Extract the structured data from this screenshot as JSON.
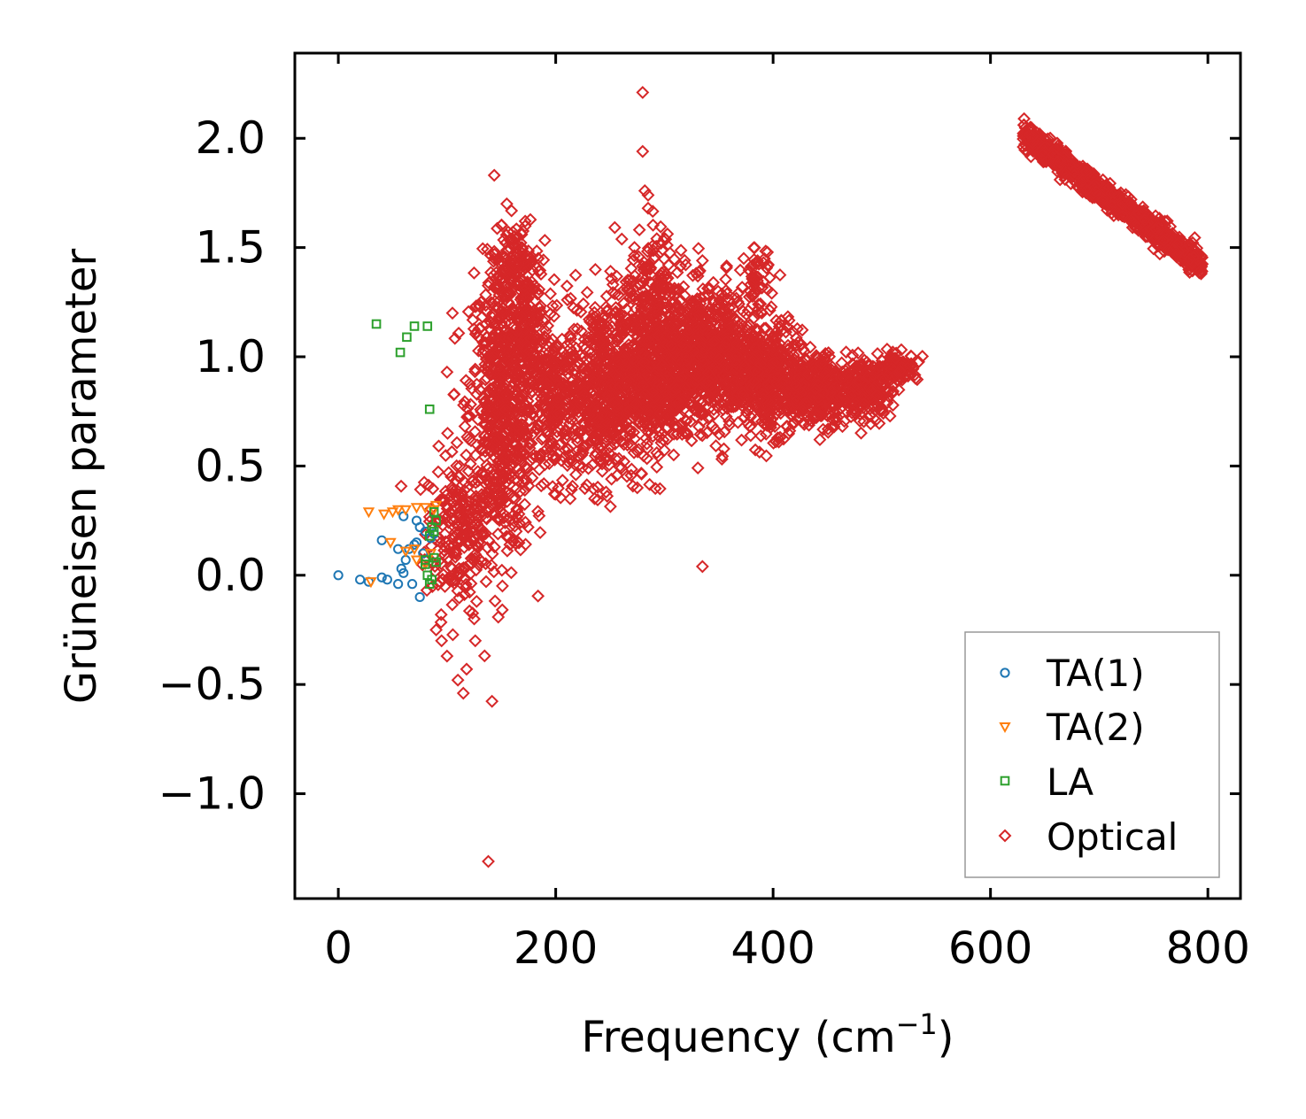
{
  "chart_data": {
    "type": "scatter",
    "xlabel": "Frequency (cm",
    "xlabel_sup": "−1",
    "xlabel_end": ")",
    "ylabel": "Grüneisen parameter",
    "xlim": [
      -40,
      830
    ],
    "ylim": [
      -1.48,
      2.39
    ],
    "xticks": [
      0,
      200,
      400,
      600,
      800
    ],
    "yticks": [
      2.0,
      1.5,
      1.0,
      0.5,
      0.0,
      -0.5,
      -1.0
    ],
    "xtick_labels": [
      "0",
      "200",
      "400",
      "600",
      "800"
    ],
    "ytick_labels": [
      "2.0",
      "1.5",
      "1.0",
      "0.5",
      "0.0",
      "−0.5",
      "−1.0"
    ],
    "legend_position": "bottom-right",
    "series": [
      {
        "name": "TA(1)",
        "marker": "circle",
        "color": "#1f77b4",
        "points": [
          [
            0,
            0.0
          ],
          [
            20,
            -0.02
          ],
          [
            28,
            -0.03
          ],
          [
            40,
            -0.01
          ],
          [
            45,
            -0.02
          ],
          [
            55,
            -0.04
          ],
          [
            58,
            0.03
          ],
          [
            60,
            0.01
          ],
          [
            62,
            0.07
          ],
          [
            68,
            -0.04
          ],
          [
            75,
            -0.1
          ],
          [
            40,
            0.16
          ],
          [
            55,
            0.12
          ],
          [
            70,
            0.14
          ],
          [
            72,
            0.15
          ],
          [
            60,
            0.27
          ],
          [
            72,
            0.25
          ],
          [
            75,
            0.22
          ],
          [
            80,
            0.2
          ],
          [
            85,
            0.17
          ],
          [
            88,
            0.19
          ],
          [
            65,
            0.12
          ],
          [
            78,
            0.1
          ]
        ]
      },
      {
        "name": "TA(2)",
        "marker": "triangle",
        "color": "#ff7f0e",
        "points": [
          [
            28,
            0.29
          ],
          [
            42,
            0.28
          ],
          [
            50,
            0.29
          ],
          [
            55,
            0.3
          ],
          [
            62,
            0.3
          ],
          [
            72,
            0.31
          ],
          [
            80,
            0.31
          ],
          [
            88,
            0.3
          ],
          [
            90,
            0.32
          ],
          [
            30,
            -0.03
          ],
          [
            48,
            0.15
          ],
          [
            70,
            0.12
          ],
          [
            72,
            0.07
          ],
          [
            80,
            0.05
          ],
          [
            85,
            0.1
          ],
          [
            62,
            0.11
          ]
        ]
      },
      {
        "name": "LA",
        "marker": "square",
        "color": "#2ca02c",
        "points": [
          [
            35,
            1.15
          ],
          [
            57,
            1.02
          ],
          [
            63,
            1.09
          ],
          [
            70,
            1.14
          ],
          [
            82,
            1.14
          ],
          [
            84,
            0.76
          ],
          [
            88,
            0.29
          ],
          [
            90,
            0.25
          ],
          [
            86,
            0.22
          ],
          [
            88,
            0.2
          ],
          [
            84,
            0.18
          ],
          [
            80,
            0.05
          ],
          [
            82,
            0.0
          ],
          [
            84,
            -0.04
          ],
          [
            86,
            -0.02
          ],
          [
            90,
            0.06
          ],
          [
            88,
            0.08
          ],
          [
            80,
            0.07
          ]
        ]
      },
      {
        "name": "Optical",
        "marker": "diamond",
        "color": "#d62728",
        "outliers": [
          [
            280,
            2.21
          ],
          [
            280,
            1.94
          ],
          [
            282,
            1.76
          ],
          [
            285,
            1.74
          ],
          [
            285,
            1.68
          ],
          [
            155,
            1.7
          ],
          [
            335,
            0.04
          ],
          [
            138,
            -1.31
          ],
          [
            115,
            -0.54
          ],
          [
            110,
            -0.48
          ],
          [
            100,
            -0.37
          ],
          [
            95,
            -0.3
          ],
          [
            90,
            -0.25
          ],
          [
            126,
            -0.3
          ],
          [
            125,
            -0.2
          ],
          [
            118,
            -0.43
          ],
          [
            100,
            0.93
          ],
          [
            105,
            1.2
          ],
          [
            345,
            1.34
          ],
          [
            335,
            1.44
          ],
          [
            373,
            1.45
          ]
        ],
        "clusters": [
          {
            "x_center": 110,
            "x_spread": 25,
            "y_center": 0.2,
            "y_spread": 0.3,
            "count": 220
          },
          {
            "x_center": 150,
            "x_spread": 25,
            "y_center": 0.75,
            "y_spread": 0.55,
            "count": 650
          },
          {
            "x_center": 175,
            "x_spread": 15,
            "y_center": 1.1,
            "y_spread": 0.35,
            "count": 180
          },
          {
            "x_center": 200,
            "x_spread": 20,
            "y_center": 0.8,
            "y_spread": 0.3,
            "count": 260
          },
          {
            "x_center": 245,
            "x_spread": 30,
            "y_center": 0.85,
            "y_spread": 0.35,
            "count": 550
          },
          {
            "x_center": 290,
            "x_spread": 30,
            "y_center": 0.95,
            "y_spread": 0.3,
            "count": 650
          },
          {
            "x_center": 340,
            "x_spread": 35,
            "y_center": 1.0,
            "y_spread": 0.25,
            "count": 750
          },
          {
            "x_center": 395,
            "x_spread": 30,
            "y_center": 0.9,
            "y_spread": 0.2,
            "count": 500
          },
          {
            "x_center": 440,
            "x_spread": 25,
            "y_center": 0.85,
            "y_spread": 0.13,
            "count": 350
          },
          {
            "x_center": 485,
            "x_spread": 20,
            "y_center": 0.85,
            "y_spread": 0.1,
            "count": 260
          },
          {
            "x_center": 515,
            "x_spread": 15,
            "y_center": 0.95,
            "y_spread": 0.05,
            "count": 120
          },
          {
            "x_center": 292,
            "x_spread": 25,
            "y_center": 1.35,
            "y_spread": 0.2,
            "count": 100
          },
          {
            "x_center": 160,
            "x_spread": 15,
            "y_center": 1.4,
            "y_spread": 0.18,
            "count": 110
          },
          {
            "x_center": 385,
            "x_spread": 10,
            "y_center": 1.35,
            "y_spread": 0.12,
            "count": 50
          }
        ],
        "high_band": {
          "x_start": 630,
          "x_end": 795,
          "y_start": 2.02,
          "y_end": 1.42,
          "spread": 0.03,
          "count": 900
        }
      }
    ]
  }
}
